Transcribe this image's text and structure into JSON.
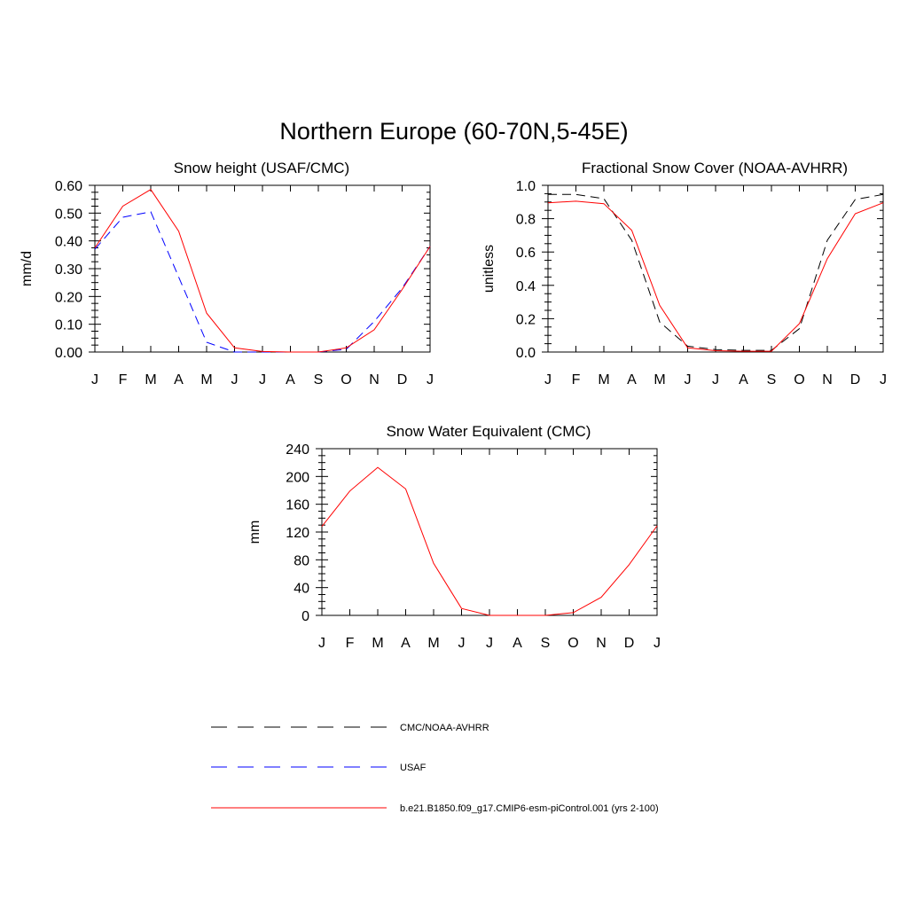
{
  "figure": {
    "title": "Northern Europe (60-70N,5-45E)"
  },
  "legend": [
    {
      "label": "CMC/NOAA-AVHRR",
      "color": "#000000",
      "dash": "dashed"
    },
    {
      "label": "USAF",
      "color": "#0000ff",
      "dash": "dashed"
    },
    {
      "label": "b.e21.B1850.f09_g17.CMIP6-esm-piControl.001 (yrs 2-100)",
      "color": "#ff0000",
      "dash": "solid"
    }
  ],
  "chart_data": [
    {
      "type": "line",
      "title": "Snow height (USAF/CMC)",
      "ylabel": "mm/d",
      "xlabel": "",
      "categories": [
        "J",
        "F",
        "M",
        "A",
        "M",
        "J",
        "J",
        "A",
        "S",
        "O",
        "N",
        "D",
        "J"
      ],
      "ylim": [
        0,
        0.6
      ],
      "yticks": [
        "0.00",
        "0.10",
        "0.20",
        "0.30",
        "0.40",
        "0.50",
        "0.60"
      ],
      "ytick_values": [
        0,
        0.1,
        0.2,
        0.3,
        0.4,
        0.5,
        0.6
      ],
      "grid": false,
      "series": [
        {
          "name": "CMC/NOAA-AVHRR",
          "color": "#000000",
          "dash": "dashed",
          "values": [
            0,
            0,
            0,
            0,
            0,
            0,
            0,
            0,
            0,
            0,
            0,
            0,
            0
          ]
        },
        {
          "name": "USAF",
          "color": "#0000ff",
          "dash": "dashed",
          "values": [
            0.37,
            0.485,
            0.505,
            0.27,
            0.035,
            0.0,
            0.0,
            0.0,
            0.0,
            0.01,
            0.11,
            0.23,
            0.38
          ]
        },
        {
          "name": "b.e21.B1850.f09_g17.CMIP6-esm-piControl.001 (yrs 2-100)",
          "color": "#ff0000",
          "dash": "solid",
          "values": [
            0.375,
            0.525,
            0.585,
            0.435,
            0.14,
            0.015,
            0.002,
            0.0,
            0.0,
            0.015,
            0.08,
            0.225,
            0.38
          ]
        }
      ]
    },
    {
      "type": "line",
      "title": "Fractional Snow Cover (NOAA-AVHRR)",
      "ylabel": "unitless",
      "xlabel": "",
      "categories": [
        "J",
        "F",
        "M",
        "A",
        "M",
        "J",
        "J",
        "A",
        "S",
        "O",
        "N",
        "D",
        "J"
      ],
      "ylim": [
        0,
        1.0
      ],
      "yticks": [
        "0.0",
        "0.2",
        "0.4",
        "0.6",
        "0.8",
        "1.0"
      ],
      "ytick_values": [
        0,
        0.2,
        0.4,
        0.6,
        0.8,
        1.0
      ],
      "grid": false,
      "series": [
        {
          "name": "CMC/NOAA-AVHRR",
          "color": "#000000",
          "dash": "dashed",
          "values": [
            0.945,
            0.945,
            0.92,
            0.67,
            0.18,
            0.035,
            0.015,
            0.01,
            0.01,
            0.14,
            0.67,
            0.915,
            0.945
          ]
        },
        {
          "name": "b.e21.B1850.f09_g17.CMIP6-esm-piControl.001 (yrs 2-100)",
          "color": "#ff0000",
          "dash": "solid",
          "values": [
            0.895,
            0.905,
            0.89,
            0.73,
            0.28,
            0.025,
            0.008,
            0.005,
            0.005,
            0.17,
            0.56,
            0.83,
            0.895
          ]
        }
      ]
    },
    {
      "type": "line",
      "title": "Snow Water Equivalent (CMC)",
      "ylabel": "mm",
      "xlabel": "",
      "categories": [
        "J",
        "F",
        "M",
        "A",
        "M",
        "J",
        "J",
        "A",
        "S",
        "O",
        "N",
        "D",
        "J"
      ],
      "ylim": [
        0,
        240
      ],
      "yticks": [
        "0",
        "40",
        "80",
        "120",
        "160",
        "200",
        "240"
      ],
      "ytick_values": [
        0,
        40,
        80,
        120,
        160,
        200,
        240
      ],
      "grid": false,
      "series": [
        {
          "name": "CMC/NOAA-AVHRR",
          "color": "#000000",
          "dash": "dashed",
          "values": [
            0,
            0,
            0,
            0,
            0,
            0,
            0,
            0,
            0,
            0,
            0,
            0,
            0
          ]
        },
        {
          "name": "b.e21.B1850.f09_g17.CMIP6-esm-piControl.001 (yrs 2-100)",
          "color": "#ff0000",
          "dash": "solid",
          "values": [
            128,
            179,
            213,
            182,
            75,
            10,
            0,
            0,
            0,
            4,
            26,
            73,
            129
          ]
        }
      ]
    }
  ]
}
